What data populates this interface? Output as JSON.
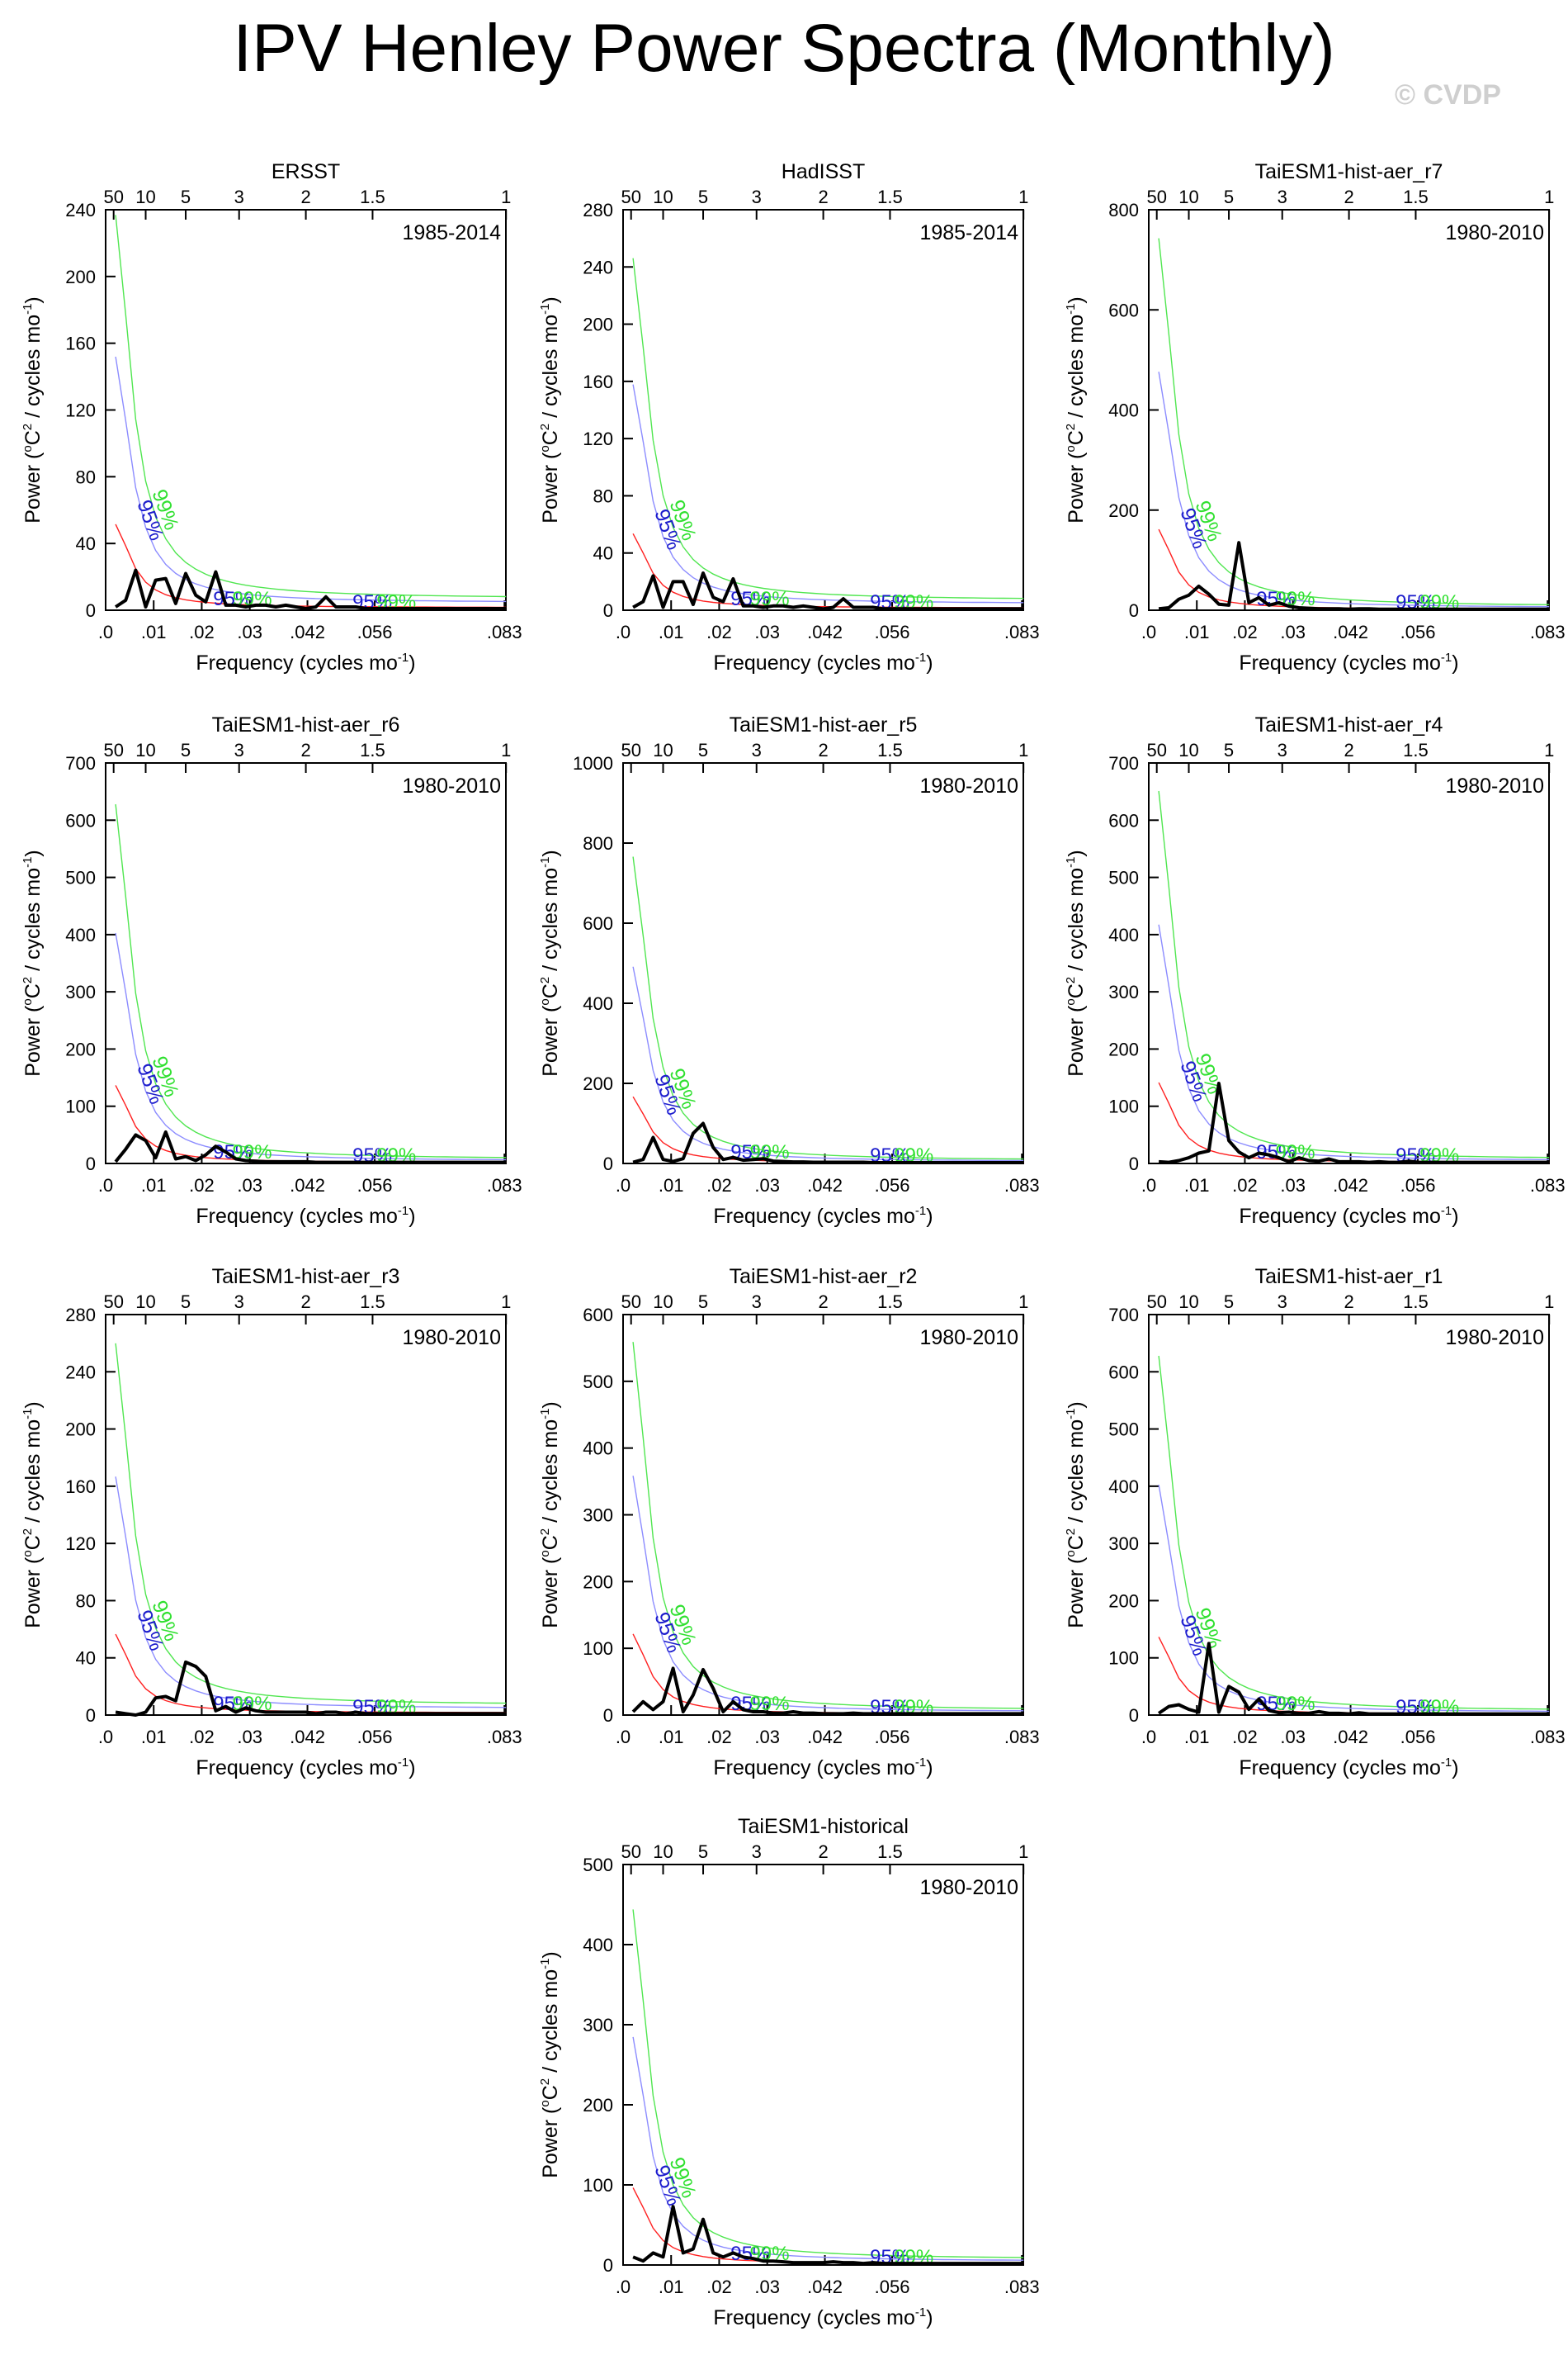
{
  "title": "IPV Henley Power Spectra (Monthly)",
  "watermark": "© CVDP",
  "chart_data": [
    {
      "type": "line",
      "title": "ERSST",
      "period": "1985-2014",
      "ylim": [
        0,
        240
      ],
      "yticks": [
        0,
        40,
        80,
        120,
        160,
        200,
        240
      ],
      "xlabel": "Frequency (cycles mo",
      "xlabel_sup": "-1",
      "xlabel_end": ")",
      "ylabel": "Power (",
      "ylabel_sup1": "o",
      "ylabel_mid": "C",
      "ylabel_sup2": "2",
      "ylabel_mid2": " / cycles mo",
      "ylabel_sup3": "-1",
      "ylabel_end": ")",
      "xlim": [
        0,
        0.0833
      ],
      "xticks": [
        0,
        0.01,
        0.02,
        0.03,
        0.042,
        0.056,
        0.083
      ],
      "xtick_labels": [
        ".0",
        ".01",
        ".02",
        ".03",
        ".042",
        ".056",
        ".083"
      ],
      "period_ticks": [
        50,
        10,
        5,
        3,
        2,
        1.5,
        1
      ],
      "period_tick_labels": [
        "50",
        "10",
        "5",
        "3",
        "2",
        "1.5",
        "1"
      ],
      "red_noise_scale": 50,
      "label_95": "95%",
      "label_99": "99%",
      "spectrum": [
        2,
        6,
        24,
        2,
        18,
        19,
        4,
        22,
        9,
        5,
        23,
        3,
        3,
        2,
        3,
        3,
        2,
        3,
        2,
        1,
        2,
        8,
        2,
        2,
        2,
        1,
        1,
        1,
        1,
        1,
        1,
        1,
        1,
        1,
        1,
        1,
        1,
        1,
        1,
        1
      ]
    },
    {
      "type": "line",
      "title": "HadISST",
      "period": "1985-2014",
      "ylim": [
        0,
        280
      ],
      "yticks": [
        0,
        40,
        80,
        120,
        160,
        200,
        240,
        280
      ],
      "xlabel": "Frequency (cycles mo",
      "xlabel_sup": "-1",
      "xlabel_end": ")",
      "ylabel": "Power (",
      "ylabel_sup1": "o",
      "ylabel_mid": "C",
      "ylabel_sup2": "2",
      "ylabel_mid2": " / cycles mo",
      "ylabel_sup3": "-1",
      "ylabel_end": ")",
      "xlim": [
        0,
        0.0833
      ],
      "xticks": [
        0,
        0.01,
        0.02,
        0.03,
        0.042,
        0.056,
        0.083
      ],
      "xtick_labels": [
        ".0",
        ".01",
        ".02",
        ".03",
        ".042",
        ".056",
        ".083"
      ],
      "period_ticks": [
        50,
        10,
        5,
        3,
        2,
        1.5,
        1
      ],
      "period_tick_labels": [
        "50",
        "10",
        "5",
        "3",
        "2",
        "1.5",
        "1"
      ],
      "red_noise_scale": 52,
      "label_95": "95%",
      "label_99": "99%",
      "spectrum": [
        2,
        6,
        24,
        2,
        20,
        20,
        4,
        26,
        9,
        6,
        22,
        3,
        3,
        2,
        3,
        3,
        2,
        3,
        2,
        1,
        2,
        8,
        2,
        2,
        2,
        1,
        1,
        1,
        1,
        1,
        1,
        1,
        1,
        1,
        1,
        1,
        1,
        1,
        1,
        1
      ]
    },
    {
      "type": "line",
      "title": "TaiESM1-hist-aer_r7",
      "period": "1980-2010",
      "ylim": [
        0,
        800
      ],
      "yticks": [
        0,
        200,
        400,
        600,
        800
      ],
      "xlabel": "Frequency (cycles mo",
      "xlabel_sup": "-1",
      "xlabel_end": ")",
      "ylabel": "Power (",
      "ylabel_sup1": "o",
      "ylabel_mid": "C",
      "ylabel_sup2": "2",
      "ylabel_mid2": " / cycles mo",
      "ylabel_sup3": "-1",
      "ylabel_end": ")",
      "xlim": [
        0,
        0.0833
      ],
      "xticks": [
        0,
        0.01,
        0.02,
        0.03,
        0.042,
        0.056,
        0.083
      ],
      "xtick_labels": [
        ".0",
        ".01",
        ".02",
        ".03",
        ".042",
        ".056",
        ".083"
      ],
      "period_ticks": [
        50,
        10,
        5,
        3,
        2,
        1.5,
        1
      ],
      "period_tick_labels": [
        "50",
        "10",
        "5",
        "3",
        "2",
        "1.5",
        "1"
      ],
      "red_noise_scale": 160,
      "label_95": "95%",
      "label_99": "99%",
      "spectrum": [
        3,
        5,
        22,
        30,
        48,
        32,
        12,
        10,
        135,
        15,
        25,
        10,
        15,
        8,
        5,
        4,
        3,
        3,
        3,
        2,
        3,
        3,
        2,
        2,
        2,
        2,
        2,
        2,
        2,
        2,
        2,
        2,
        2,
        2,
        2,
        2,
        2,
        2,
        2,
        2
      ]
    },
    {
      "type": "line",
      "title": "TaiESM1-hist-aer_r6",
      "period": "1980-2010",
      "ylim": [
        0,
        700
      ],
      "yticks": [
        0,
        100,
        200,
        300,
        400,
        500,
        600,
        700
      ],
      "xlabel": "Frequency (cycles mo",
      "xlabel_sup": "-1",
      "xlabel_end": ")",
      "ylabel": "Power (",
      "ylabel_sup1": "o",
      "ylabel_mid": "C",
      "ylabel_sup2": "2",
      "ylabel_mid2": " / cycles mo",
      "ylabel_sup3": "-1",
      "ylabel_end": ")",
      "xlim": [
        0,
        0.0833
      ],
      "xticks": [
        0,
        0.01,
        0.02,
        0.03,
        0.042,
        0.056,
        0.083
      ],
      "xtick_labels": [
        ".0",
        ".01",
        ".02",
        ".03",
        ".042",
        ".056",
        ".083"
      ],
      "period_ticks": [
        50,
        10,
        5,
        3,
        2,
        1.5,
        1
      ],
      "period_tick_labels": [
        "50",
        "10",
        "5",
        "3",
        "2",
        "1.5",
        "1"
      ],
      "red_noise_scale": 135,
      "label_95": "95%",
      "label_99": "99%",
      "spectrum": [
        3,
        25,
        50,
        40,
        10,
        55,
        8,
        12,
        5,
        15,
        30,
        20,
        8,
        5,
        4,
        3,
        3,
        3,
        3,
        3,
        2,
        2,
        2,
        2,
        2,
        2,
        2,
        2,
        2,
        2,
        2,
        2,
        2,
        2,
        2,
        2,
        2,
        2,
        2,
        2
      ]
    },
    {
      "type": "line",
      "title": "TaiESM1-hist-aer_r5",
      "period": "1980-2010",
      "ylim": [
        0,
        1000
      ],
      "yticks": [
        0,
        200,
        400,
        600,
        800,
        1000
      ],
      "xlabel": "Frequency (cycles mo",
      "xlabel_sup": "-1",
      "xlabel_end": ")",
      "ylabel": "Power (",
      "ylabel_sup1": "o",
      "ylabel_mid": "C",
      "ylabel_sup2": "2",
      "ylabel_mid2": " / cycles mo",
      "ylabel_sup3": "-1",
      "ylabel_end": ")",
      "xlim": [
        0,
        0.0833
      ],
      "xticks": [
        0,
        0.01,
        0.02,
        0.03,
        0.042,
        0.056,
        0.083
      ],
      "xtick_labels": [
        ".0",
        ".01",
        ".02",
        ".03",
        ".042",
        ".056",
        ".083"
      ],
      "period_ticks": [
        50,
        10,
        5,
        3,
        2,
        1.5,
        1
      ],
      "period_tick_labels": [
        "50",
        "10",
        "5",
        "3",
        "2",
        "1.5",
        "1"
      ],
      "red_noise_scale": 165,
      "label_95": "95%",
      "label_99": "99%",
      "spectrum": [
        3,
        10,
        65,
        10,
        5,
        12,
        75,
        100,
        40,
        10,
        15,
        8,
        10,
        12,
        6,
        5,
        4,
        4,
        3,
        3,
        3,
        3,
        3,
        3,
        2,
        2,
        2,
        2,
        2,
        2,
        2,
        2,
        2,
        2,
        2,
        2,
        2,
        2,
        2,
        2
      ]
    },
    {
      "type": "line",
      "title": "TaiESM1-hist-aer_r4",
      "period": "1980-2010",
      "ylim": [
        0,
        700
      ],
      "yticks": [
        0,
        100,
        200,
        300,
        400,
        500,
        600,
        700
      ],
      "xlabel": "Frequency (cycles mo",
      "xlabel_sup": "-1",
      "xlabel_end": ")",
      "ylabel": "Power (",
      "ylabel_sup1": "o",
      "ylabel_mid": "C",
      "ylabel_sup2": "2",
      "ylabel_mid2": " / cycles mo",
      "ylabel_sup3": "-1",
      "ylabel_end": ")",
      "xlim": [
        0,
        0.0833
      ],
      "xticks": [
        0,
        0.01,
        0.02,
        0.03,
        0.042,
        0.056,
        0.083
      ],
      "xtick_labels": [
        ".0",
        ".01",
        ".02",
        ".03",
        ".042",
        ".056",
        ".083"
      ],
      "period_ticks": [
        50,
        10,
        5,
        3,
        2,
        1.5,
        1
      ],
      "period_tick_labels": [
        "50",
        "10",
        "5",
        "3",
        "2",
        "1.5",
        "1"
      ],
      "red_noise_scale": 140,
      "label_95": "95%",
      "label_99": "99%",
      "spectrum": [
        3,
        2,
        5,
        10,
        18,
        22,
        140,
        40,
        20,
        10,
        18,
        15,
        10,
        3,
        10,
        5,
        4,
        8,
        3,
        3,
        3,
        2,
        3,
        2,
        2,
        4,
        2,
        2,
        2,
        2,
        2,
        2,
        2,
        2,
        2,
        2,
        2,
        2,
        2,
        2
      ]
    },
    {
      "type": "line",
      "title": "TaiESM1-hist-aer_r3",
      "period": "1980-2010",
      "ylim": [
        0,
        280
      ],
      "yticks": [
        0,
        40,
        80,
        120,
        160,
        200,
        240,
        280
      ],
      "xlabel": "Frequency (cycles mo",
      "xlabel_sup": "-1",
      "xlabel_end": ")",
      "ylabel": "Power (",
      "ylabel_sup1": "o",
      "ylabel_mid": "C",
      "ylabel_sup2": "2",
      "ylabel_mid2": " / cycles mo",
      "ylabel_sup3": "-1",
      "ylabel_end": ")",
      "xlim": [
        0,
        0.0833
      ],
      "xticks": [
        0,
        0.01,
        0.02,
        0.03,
        0.042,
        0.056,
        0.083
      ],
      "xtick_labels": [
        ".0",
        ".01",
        ".02",
        ".03",
        ".042",
        ".056",
        ".083"
      ],
      "period_ticks": [
        50,
        10,
        5,
        3,
        2,
        1.5,
        1
      ],
      "period_tick_labels": [
        "50",
        "10",
        "5",
        "3",
        "2",
        "1.5",
        "1"
      ],
      "red_noise_scale": 55,
      "label_95": "95%",
      "label_99": "99%",
      "spectrum": [
        2,
        1,
        0,
        2,
        12,
        13,
        10,
        37,
        34,
        27,
        3,
        6,
        2,
        5,
        3,
        2,
        2,
        2,
        2,
        2,
        1,
        2,
        2,
        1,
        2,
        1,
        1,
        1,
        1,
        1,
        1,
        1,
        1,
        1,
        1,
        1,
        1,
        1,
        1,
        1
      ]
    },
    {
      "type": "line",
      "title": "TaiESM1-hist-aer_r2",
      "period": "1980-2010",
      "ylim": [
        0,
        600
      ],
      "yticks": [
        0,
        100,
        200,
        300,
        400,
        500,
        600
      ],
      "xlabel": "Frequency (cycles mo",
      "xlabel_sup": "-1",
      "xlabel_end": ")",
      "ylabel": "Power (",
      "ylabel_sup1": "o",
      "ylabel_mid": "C",
      "ylabel_sup2": "2",
      "ylabel_mid2": " / cycles mo",
      "ylabel_sup3": "-1",
      "ylabel_end": ")",
      "xlim": [
        0,
        0.0833
      ],
      "xticks": [
        0,
        0.01,
        0.02,
        0.03,
        0.042,
        0.056,
        0.083
      ],
      "xtick_labels": [
        ".0",
        ".01",
        ".02",
        ".03",
        ".042",
        ".056",
        ".083"
      ],
      "period_ticks": [
        50,
        10,
        5,
        3,
        2,
        1.5,
        1
      ],
      "period_tick_labels": [
        "50",
        "10",
        "5",
        "3",
        "2",
        "1.5",
        "1"
      ],
      "red_noise_scale": 120,
      "label_95": "95%",
      "label_99": "99%",
      "spectrum": [
        5,
        20,
        8,
        20,
        70,
        5,
        30,
        68,
        40,
        5,
        20,
        8,
        5,
        5,
        3,
        3,
        5,
        3,
        3,
        2,
        2,
        2,
        3,
        2,
        2,
        2,
        2,
        2,
        2,
        2,
        2,
        2,
        2,
        2,
        2,
        2,
        2,
        2,
        2,
        2
      ]
    },
    {
      "type": "line",
      "title": "TaiESM1-hist-aer_r1",
      "period": "1980-2010",
      "ylim": [
        0,
        700
      ],
      "yticks": [
        0,
        100,
        200,
        300,
        400,
        500,
        600,
        700
      ],
      "xlabel": "Frequency (cycles mo",
      "xlabel_sup": "-1",
      "xlabel_end": ")",
      "ylabel": "Power (",
      "ylabel_sup1": "o",
      "ylabel_mid": "C",
      "ylabel_sup2": "2",
      "ylabel_mid2": " / cycles mo",
      "ylabel_sup3": "-1",
      "ylabel_end": ")",
      "xlim": [
        0,
        0.0833
      ],
      "xticks": [
        0,
        0.01,
        0.02,
        0.03,
        0.042,
        0.056,
        0.083
      ],
      "xtick_labels": [
        ".0",
        ".01",
        ".02",
        ".03",
        ".042",
        ".056",
        ".083"
      ],
      "period_ticks": [
        50,
        10,
        5,
        3,
        2,
        1.5,
        1
      ],
      "period_tick_labels": [
        "50",
        "10",
        "5",
        "3",
        "2",
        "1.5",
        "1"
      ],
      "red_noise_scale": 135,
      "label_95": "95%",
      "label_99": "99%",
      "spectrum": [
        3,
        15,
        18,
        10,
        5,
        125,
        5,
        50,
        40,
        10,
        28,
        8,
        4,
        5,
        3,
        3,
        6,
        3,
        3,
        2,
        4,
        2,
        2,
        2,
        2,
        2,
        2,
        2,
        2,
        2,
        2,
        2,
        2,
        2,
        2,
        2,
        2,
        2,
        2,
        2
      ]
    },
    {
      "type": "line",
      "title": "TaiESM1-historical",
      "period": "1980-2010",
      "ylim": [
        0,
        500
      ],
      "yticks": [
        0,
        100,
        200,
        300,
        400,
        500
      ],
      "xlabel": "Frequency (cycles mo",
      "xlabel_sup": "-1",
      "xlabel_end": ")",
      "ylabel": "Power (",
      "ylabel_sup1": "o",
      "ylabel_mid": "C",
      "ylabel_sup2": "2",
      "ylabel_mid2": " / cycles mo",
      "ylabel_sup3": "-1",
      "ylabel_end": ")",
      "xlim": [
        0,
        0.0833
      ],
      "xticks": [
        0,
        0.01,
        0.02,
        0.03,
        0.042,
        0.056,
        0.083
      ],
      "xtick_labels": [
        ".0",
        ".01",
        ".02",
        ".03",
        ".042",
        ".056",
        ".083"
      ],
      "period_ticks": [
        50,
        10,
        5,
        3,
        2,
        1.5,
        1
      ],
      "period_tick_labels": [
        "50",
        "10",
        "5",
        "3",
        "2",
        "1.5",
        "1"
      ],
      "red_noise_scale": 95,
      "label_95": "95%",
      "label_99": "99%",
      "spectrum": [
        10,
        5,
        15,
        10,
        73,
        15,
        20,
        57,
        15,
        10,
        15,
        10,
        8,
        5,
        5,
        4,
        3,
        3,
        3,
        3,
        4,
        3,
        3,
        2,
        3,
        2,
        2,
        2,
        2,
        2,
        2,
        2,
        2,
        2,
        2,
        2,
        2,
        2,
        2,
        2
      ]
    }
  ]
}
